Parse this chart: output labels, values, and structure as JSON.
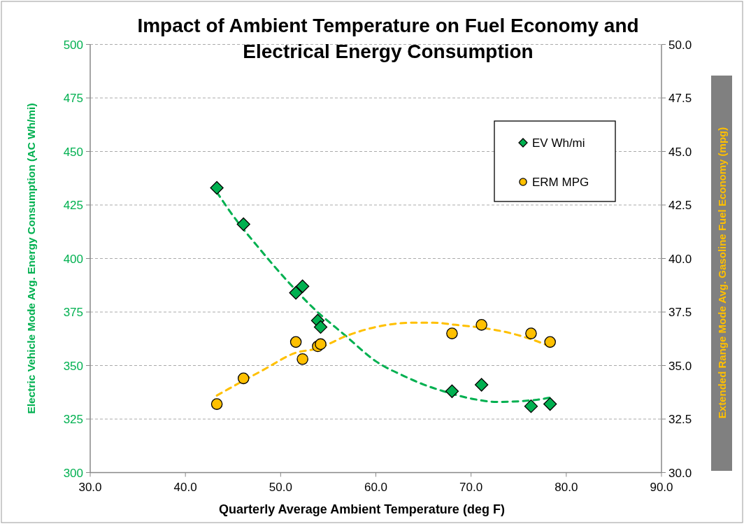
{
  "chart_data": {
    "type": "scatter",
    "title": "Impact of Ambient Temperature on Fuel Economy and Electrical Energy Consumption",
    "xlabel": "Quarterly Average Ambient Temperature (deg F)",
    "ylabel": "Electric Vehicle Mode Avg. Energy Consumption  (AC Wh/mi)",
    "y2label": "Extended Range Mode Avg. Gasoline Fuel Economy (mpg)",
    "xlim": [
      30,
      90
    ],
    "xticks": [
      {
        "value": 30,
        "label": "30.0"
      },
      {
        "value": 40,
        "label": "40.0"
      },
      {
        "value": 50,
        "label": "50.0"
      },
      {
        "value": 60,
        "label": "60.0"
      },
      {
        "value": 70,
        "label": "70.0"
      },
      {
        "value": 80,
        "label": "80.0"
      },
      {
        "value": 90,
        "label": "90.0"
      }
    ],
    "ylim": [
      300,
      500
    ],
    "yticks": [
      300,
      325,
      350,
      375,
      400,
      425,
      450,
      475,
      500
    ],
    "y2lim": [
      30,
      50
    ],
    "y2ticks": [
      {
        "value": 30,
        "label": "30.0"
      },
      {
        "value": 32.5,
        "label": "32.5"
      },
      {
        "value": 35,
        "label": "35.0"
      },
      {
        "value": 37.5,
        "label": "37.5"
      },
      {
        "value": 40,
        "label": "40.0"
      },
      {
        "value": 42.5,
        "label": "42.5"
      },
      {
        "value": 45,
        "label": "45.0"
      },
      {
        "value": 47.5,
        "label": "47.5"
      },
      {
        "value": 50,
        "label": "50.0"
      }
    ],
    "grid": "y",
    "legend": "top right",
    "series": [
      {
        "name": "EV Wh/mi",
        "marker": "diamond",
        "color": "#00b050",
        "x": [
          43.3,
          46.1,
          51.6,
          52.3,
          53.9,
          54.2,
          68.0,
          71.1,
          76.3,
          78.3
        ],
        "values": [
          433,
          416,
          384,
          387,
          371,
          368,
          338,
          341,
          331,
          332
        ]
      },
      {
        "name": "ERM MPG",
        "marker": "circle",
        "color": "#ffc000",
        "axis": "y2",
        "x": [
          43.3,
          46.1,
          51.6,
          52.3,
          53.9,
          54.2,
          68.0,
          71.1,
          76.3,
          78.3
        ],
        "values": [
          33.2,
          34.4,
          36.1,
          35.3,
          35.9,
          36.0,
          36.5,
          36.9,
          36.5,
          36.1
        ]
      },
      {
        "type": "line",
        "marker": "none",
        "line_style": "dashed",
        "color": "#00b050",
        "x": [
          43.3,
          45,
          47.7,
          50.4,
          53.4,
          56.8,
          60,
          63,
          65.1,
          67.1,
          70.7,
          72.7,
          76.9,
          78.3
        ],
        "values": [
          431,
          420,
          405,
          391,
          377,
          364,
          352,
          345,
          341,
          338,
          334,
          333,
          334,
          335
        ]
      },
      {
        "type": "line",
        "marker": "none",
        "line_style": "dashed",
        "color": "#ffc000",
        "axis": "y2",
        "x": [
          43.3,
          44.5,
          48.2,
          51.6,
          53.9,
          57,
          60,
          64,
          66,
          68.4,
          71.3,
          73.8,
          76.5,
          78.3
        ],
        "values": [
          33.6,
          33.9,
          34.8,
          35.6,
          35.8,
          36.4,
          36.8,
          37.0,
          37.0,
          36.9,
          36.75,
          36.55,
          36.2,
          35.9
        ]
      }
    ]
  }
}
